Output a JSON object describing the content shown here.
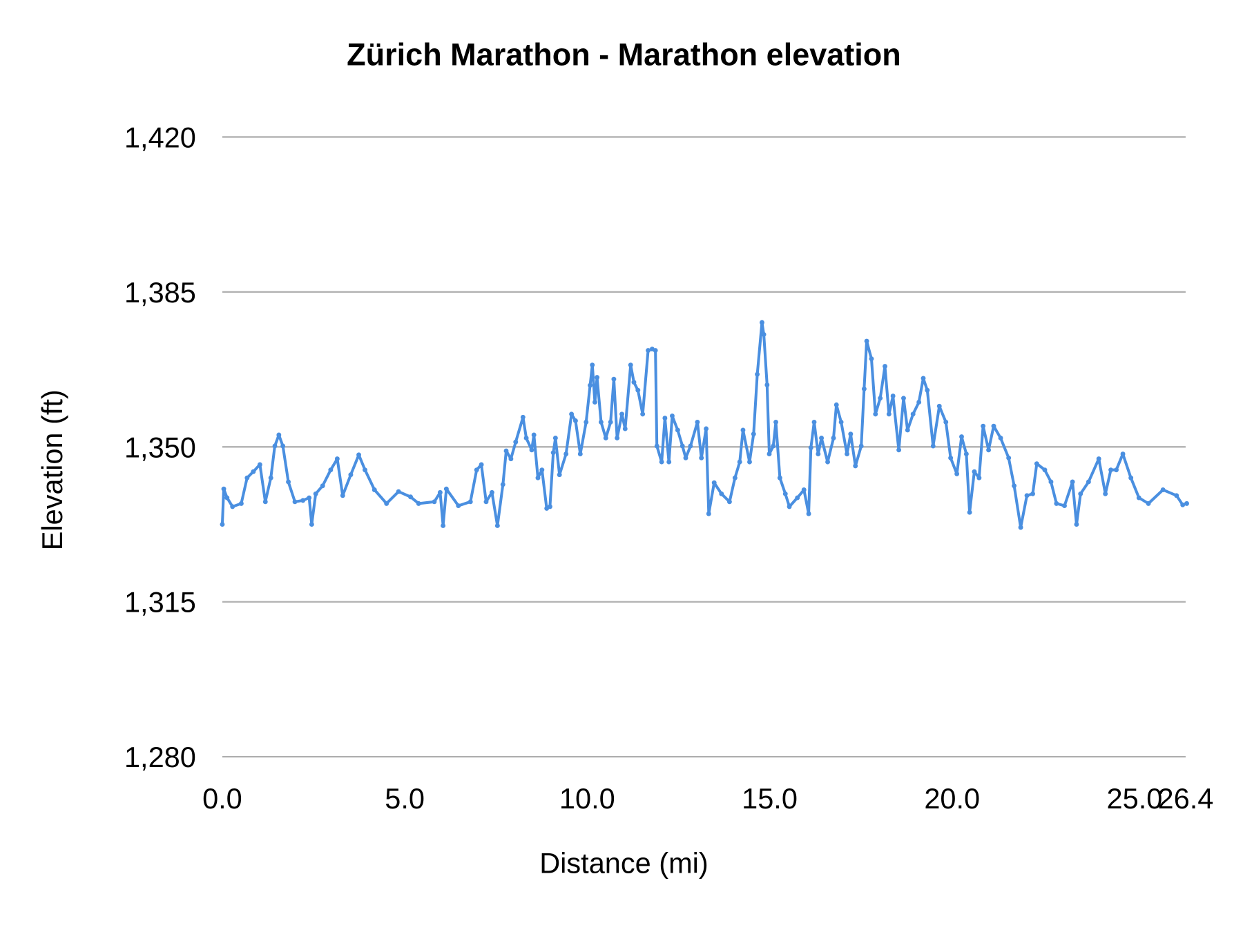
{
  "chart_data": {
    "type": "line",
    "title": "Zürich Marathon - Marathon elevation",
    "xlabel": "Distance (mi)",
    "ylabel": "Elevation (ft)",
    "xlim": [
      0,
      26.4
    ],
    "ylim": [
      1280,
      1420
    ],
    "x_ticks": [
      "0.0",
      "5.0",
      "10.0",
      "15.0",
      "20.0",
      "25.0",
      "26.4"
    ],
    "x_tick_values": [
      0,
      5,
      10,
      15,
      20,
      25,
      26.4
    ],
    "y_ticks": [
      "1,280",
      "1,315",
      "1,350",
      "1,385",
      "1,420"
    ],
    "y_tick_values": [
      1280,
      1315,
      1350,
      1385,
      1420
    ],
    "grid": "horizontal",
    "legend": "none",
    "markers": true,
    "color": "#4a8fe0",
    "gridline_color": "#b0b0b0",
    "series": [
      {
        "x": [
          0.0,
          0.04,
          0.13,
          0.28,
          0.52,
          0.68,
          0.85,
          1.03,
          1.18,
          1.33,
          1.44,
          1.55,
          1.66,
          1.81,
          1.99,
          2.21,
          2.38,
          2.45,
          2.56,
          2.75,
          2.97,
          3.15,
          3.3,
          3.52,
          3.74,
          3.91,
          4.17,
          4.5,
          4.83,
          5.16,
          5.38,
          5.81,
          5.97,
          6.05,
          6.14,
          6.47,
          6.8,
          6.97,
          7.1,
          7.23,
          7.39,
          7.54,
          7.69,
          7.78,
          7.91,
          8.04,
          8.24,
          8.33,
          8.48,
          8.54,
          8.65,
          8.76,
          8.89,
          8.98,
          9.07,
          9.13,
          9.24,
          9.42,
          9.57,
          9.68,
          9.81,
          9.97,
          10.08,
          10.14,
          10.21,
          10.27,
          10.38,
          10.51,
          10.64,
          10.73,
          10.82,
          10.95,
          11.04,
          11.19,
          11.28,
          11.39,
          11.52,
          11.67,
          11.78,
          11.87,
          11.91,
          12.04,
          12.13,
          12.24,
          12.33,
          12.48,
          12.61,
          12.7,
          12.83,
          13.02,
          13.13,
          13.26,
          13.33,
          13.48,
          13.68,
          13.9,
          14.05,
          14.18,
          14.27,
          14.45,
          14.56,
          14.66,
          14.79,
          14.84,
          14.93,
          14.99,
          15.1,
          15.17,
          15.28,
          15.43,
          15.54,
          15.76,
          15.94,
          16.07,
          16.13,
          16.22,
          16.33,
          16.42,
          16.59,
          16.75,
          16.83,
          16.96,
          17.12,
          17.22,
          17.35,
          17.51,
          17.59,
          17.66,
          17.79,
          17.9,
          18.03,
          18.16,
          18.27,
          18.38,
          18.54,
          18.67,
          18.78,
          18.93,
          19.09,
          19.21,
          19.32,
          19.48,
          19.65,
          19.83,
          19.96,
          20.13,
          20.26,
          20.39,
          20.48,
          20.61,
          20.74,
          20.85,
          21.0,
          21.14,
          21.33,
          21.55,
          21.7,
          21.88,
          22.05,
          22.21,
          22.32,
          22.54,
          22.71,
          22.86,
          23.08,
          23.3,
          23.41,
          23.52,
          23.74,
          24.02,
          24.2,
          24.35,
          24.5,
          24.68,
          24.9,
          25.12,
          25.38,
          25.78,
          26.15,
          26.32,
          26.43
        ],
        "y": [
          1332.5,
          1340.5,
          1338.5,
          1336.5,
          1337.2,
          1343.0,
          1344.4,
          1346.0,
          1337.6,
          1343.0,
          1350.2,
          1352.7,
          1350.2,
          1342.1,
          1337.6,
          1337.9,
          1338.5,
          1332.5,
          1339.4,
          1341.2,
          1344.8,
          1347.3,
          1339.0,
          1343.7,
          1348.2,
          1344.8,
          1340.3,
          1337.2,
          1339.9,
          1338.7,
          1337.2,
          1337.6,
          1339.7,
          1332.2,
          1340.5,
          1336.7,
          1337.6,
          1344.8,
          1346.0,
          1337.6,
          1339.7,
          1332.2,
          1341.5,
          1349.1,
          1347.3,
          1351.1,
          1356.7,
          1352.0,
          1349.3,
          1352.7,
          1343.0,
          1344.8,
          1336.1,
          1336.5,
          1348.7,
          1352.0,
          1343.7,
          1348.4,
          1357.4,
          1355.9,
          1348.4,
          1355.6,
          1363.9,
          1368.5,
          1360.1,
          1365.7,
          1355.6,
          1352.0,
          1355.6,
          1365.3,
          1352.0,
          1357.4,
          1354.1,
          1368.5,
          1364.6,
          1362.8,
          1357.4,
          1371.8,
          1372.1,
          1371.8,
          1350.2,
          1346.6,
          1356.5,
          1346.6,
          1357.0,
          1353.8,
          1350.2,
          1347.5,
          1350.2,
          1355.6,
          1347.5,
          1354.1,
          1334.9,
          1341.9,
          1339.4,
          1337.6,
          1343.0,
          1346.6,
          1353.8,
          1346.6,
          1352.9,
          1366.4,
          1378.1,
          1375.4,
          1364.0,
          1348.4,
          1350.2,
          1355.6,
          1343.0,
          1339.4,
          1336.5,
          1338.5,
          1340.3,
          1334.9,
          1349.8,
          1355.6,
          1348.4,
          1352.0,
          1346.6,
          1352.0,
          1359.5,
          1355.6,
          1348.4,
          1352.9,
          1345.7,
          1350.2,
          1363.1,
          1373.9,
          1369.9,
          1357.4,
          1361.0,
          1368.2,
          1357.4,
          1361.5,
          1349.3,
          1361.0,
          1353.8,
          1357.4,
          1360.1,
          1365.5,
          1362.8,
          1350.2,
          1359.2,
          1355.6,
          1347.5,
          1343.9,
          1352.3,
          1348.4,
          1335.2,
          1344.4,
          1343.0,
          1354.7,
          1349.3,
          1354.7,
          1352.0,
          1347.5,
          1341.2,
          1331.8,
          1339.0,
          1339.4,
          1346.2,
          1344.8,
          1342.1,
          1337.2,
          1336.7,
          1342.1,
          1332.5,
          1339.4,
          1342.1,
          1347.3,
          1339.4,
          1344.8,
          1344.8,
          1348.4,
          1343.0,
          1338.5,
          1337.2,
          1340.3,
          1339.0,
          1336.9,
          1337.2
        ]
      }
    ]
  }
}
